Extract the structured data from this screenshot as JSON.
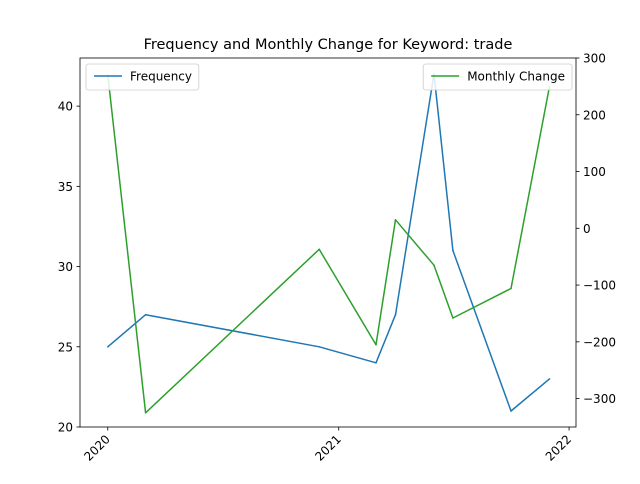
{
  "chart_data": {
    "type": "line",
    "title": "Frequency and Monthly Change for Keyword: trade",
    "xlabel": "",
    "ylabel_left": "",
    "ylabel_right": "",
    "x_ticks": [
      "2020",
      "2021",
      "2022"
    ],
    "y_left_ticks": [
      20,
      25,
      30,
      35,
      40
    ],
    "y_right_ticks": [
      -300,
      -200,
      -100,
      0,
      100,
      200,
      300
    ],
    "y_left_lim": [
      20,
      43
    ],
    "y_right_lim": [
      -350,
      300
    ],
    "x_lim": [
      "2019-11-18",
      "2022-01-12"
    ],
    "grid": false,
    "series": [
      {
        "name": "Frequency",
        "axis": "left",
        "color": "#1f77b4",
        "x": [
          "2020-01-01",
          "2020-03-01",
          "2020-12-01",
          "2021-03-01",
          "2021-04-01",
          "2021-06-01",
          "2021-07-01",
          "2021-10-01",
          "2021-12-01"
        ],
        "y": [
          25,
          27,
          25,
          24,
          27,
          42,
          31,
          21,
          23
        ]
      },
      {
        "name": "Monthly Change",
        "axis": "right",
        "color": "#2ca02c",
        "x": [
          "2020-01-01",
          "2020-03-01",
          "2020-12-01",
          "2021-03-01",
          "2021-04-01",
          "2021-06-01",
          "2021-07-01",
          "2021-10-01",
          "2021-12-01"
        ],
        "y": [
          270,
          -325,
          -37,
          -205,
          15,
          -65,
          -158,
          -106,
          250
        ]
      }
    ],
    "legends": [
      {
        "placement": "top-left",
        "entries": [
          "Frequency"
        ]
      },
      {
        "placement": "top-right",
        "entries": [
          "Monthly Change"
        ]
      }
    ]
  }
}
